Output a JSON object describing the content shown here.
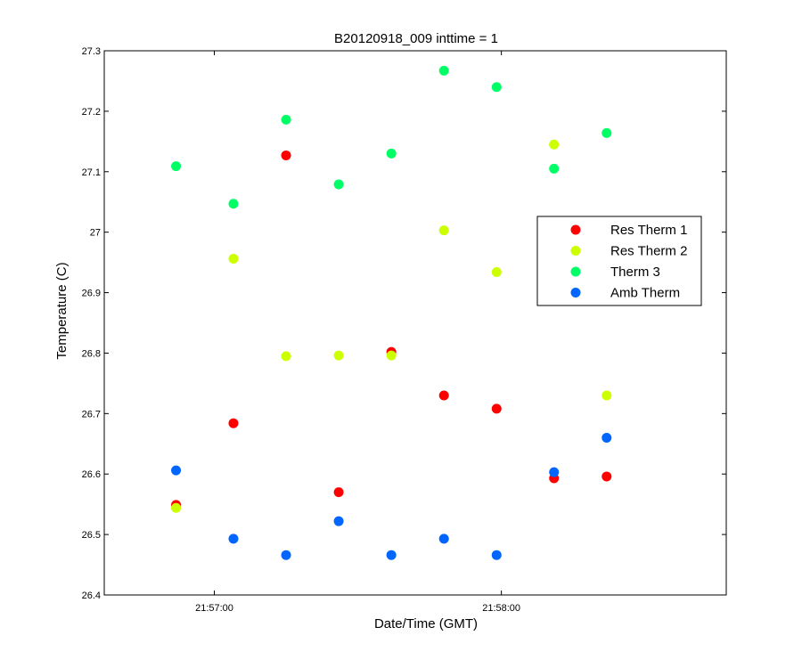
{
  "chart_data": {
    "type": "scatter",
    "title": "B20120918_009 inttime = 1",
    "xlabel": "Date/Time (GMT)",
    "ylabel": "Temperature (C)",
    "ylim": [
      26.4,
      27.3
    ],
    "yticks": [
      "26.4",
      "26.5",
      "26.6",
      "26.7",
      "26.8",
      "26.9",
      "27",
      "27.1",
      "27.2",
      "27.3"
    ],
    "xlim": [
      "21:56:37",
      "21:58:47"
    ],
    "xticks": [
      "21:57:00",
      "21:58:00"
    ],
    "x": [
      "21:56:52",
      "21:57:04",
      "21:57:15",
      "21:57:26",
      "21:57:37",
      "21:57:48",
      "21:57:59",
      "21:58:11",
      "21:58:22"
    ],
    "legend_position": "right",
    "series": [
      {
        "name": "Res Therm 1",
        "color": "#ff0000",
        "values": [
          26.549,
          26.684,
          27.127,
          26.57,
          26.802,
          26.73,
          26.708,
          26.593,
          26.596
        ]
      },
      {
        "name": "Res Therm 2",
        "color": "#ccff00",
        "values": [
          26.544,
          26.956,
          26.795,
          26.796,
          26.796,
          27.003,
          26.934,
          27.145,
          26.73
        ]
      },
      {
        "name": "Therm 3",
        "color": "#00ff66",
        "values": [
          27.109,
          27.047,
          27.186,
          27.079,
          27.13,
          27.267,
          27.24,
          27.105,
          27.164
        ]
      },
      {
        "name": "Amb Therm",
        "color": "#0066ff",
        "values": [
          26.606,
          26.493,
          26.466,
          26.522,
          26.466,
          26.493,
          26.466,
          26.603,
          26.66
        ]
      }
    ]
  }
}
